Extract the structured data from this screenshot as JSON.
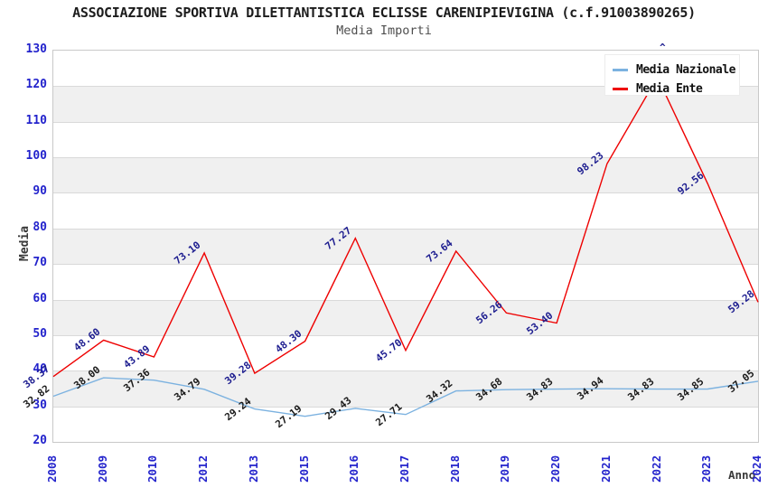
{
  "header": {
    "title": "ASSOCIAZIONE SPORTIVA DILETTANTISTICA ECLISSE CARENIPIEVIGINA (c.f.91003890265)",
    "subtitle": "Media Importi"
  },
  "axes": {
    "y_label": "Media",
    "x_label": "Anno",
    "y_ticks": [
      20,
      30,
      40,
      50,
      60,
      70,
      80,
      90,
      100,
      110,
      120,
      130
    ],
    "peak_marker": "^"
  },
  "legend": {
    "position": "top-right",
    "items": [
      {
        "label": "Media Nazionale",
        "color": "#7cb2e0"
      },
      {
        "label": "Media Ente",
        "color": "#ee0000"
      }
    ]
  },
  "colors": {
    "tick_blue": "#2323cc",
    "band_gray": "#f0f0f0",
    "gridline": "#d9d9d9",
    "nazionale_line": "#7cb2e0",
    "ente_line": "#ee0000",
    "ente_label_navy": "#1c1c8f",
    "nazionale_label_dark": "#1a1a1a"
  },
  "chart_data": {
    "type": "line",
    "title": "ASSOCIAZIONE SPORTIVA DILETTANTISTICA ECLISSE CARENIPIEVIGINA (c.f.91003890265)",
    "subtitle": "Media Importi",
    "xlabel": "Anno",
    "ylabel": "Media",
    "ylim": [
      20,
      130
    ],
    "grid": true,
    "legend_position": "top-right",
    "x": [
      "2008",
      "2009",
      "2010",
      "2012",
      "2013",
      "2015",
      "2016",
      "2017",
      "2018",
      "2019",
      "2020",
      "2021",
      "2022",
      "2023",
      "2024"
    ],
    "series": [
      {
        "name": "Media Nazionale",
        "color": "#7cb2e0",
        "label_color": "#1a1a1a",
        "values": [
          32.82,
          38.0,
          37.36,
          34.79,
          29.24,
          27.19,
          29.43,
          27.71,
          34.32,
          34.68,
          34.83,
          34.94,
          34.83,
          34.85,
          37.05
        ],
        "value_labels": [
          "32.82",
          "38.00",
          "37.36",
          "34.79",
          "29.24",
          "27.19",
          "29.43",
          "27.71",
          "34.32",
          "34.68",
          "34.83",
          "34.94",
          "34.83",
          "34.85",
          "37.05"
        ]
      },
      {
        "name": "Media Ente",
        "color": "#ee0000",
        "label_color": "#1c1c8f",
        "values": [
          38.37,
          48.6,
          43.89,
          73.1,
          39.28,
          48.3,
          77.27,
          45.7,
          73.64,
          56.26,
          53.4,
          98.23,
          122.5,
          92.56,
          59.28
        ],
        "value_labels": [
          "38.37",
          "48.60",
          "43.89",
          "73.10",
          "39.28",
          "48.30",
          "77.27",
          "45.70",
          "73.64",
          "56.26",
          "53.40",
          "98.23",
          "",
          "92.56",
          "59.28"
        ],
        "occluded_label_index": 12,
        "occlusion_note": "2022 peak value label hidden behind legend box; only tip visible"
      }
    ]
  }
}
